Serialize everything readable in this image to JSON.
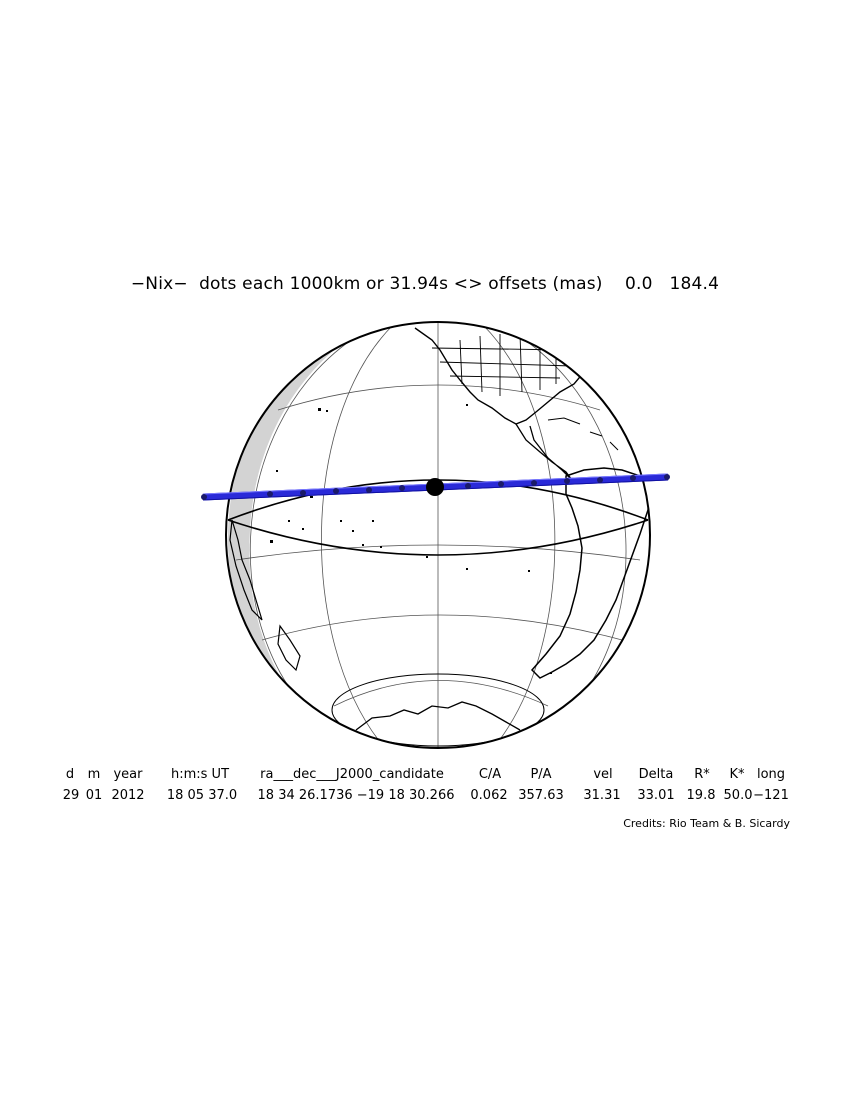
{
  "header": {
    "object": "−Nix−",
    "text": "dots each 1000km or 31.94s <> offsets (mas)",
    "offset_ra": "0.0",
    "offset_dec": "184.4"
  },
  "map": {
    "colors": {
      "ocean": "#ffffff",
      "night_side": "#d3d3d3",
      "coastline": "#000000",
      "grid": "#555555",
      "shadow_path": "#2a2ad8",
      "shadow_dots": "#1a1a6a",
      "geocenter": "#000000"
    }
  },
  "event_table": {
    "headers": [
      "d",
      "m",
      "year",
      "h:m:s UT",
      "ra___dec___J2000_candidate",
      "C/A",
      "P/A",
      "vel",
      "Delta",
      "R*",
      "K*",
      "long"
    ],
    "values": [
      "29",
      "01",
      "2012",
      "18 05 37.0",
      "18 34 26.1736 −19 18 30.266",
      "0.062",
      "357.63",
      "31.31",
      "33.01",
      "19.8",
      "50.0",
      "−121"
    ]
  },
  "credits": "Credits: Rio Team & B. Sicardy"
}
